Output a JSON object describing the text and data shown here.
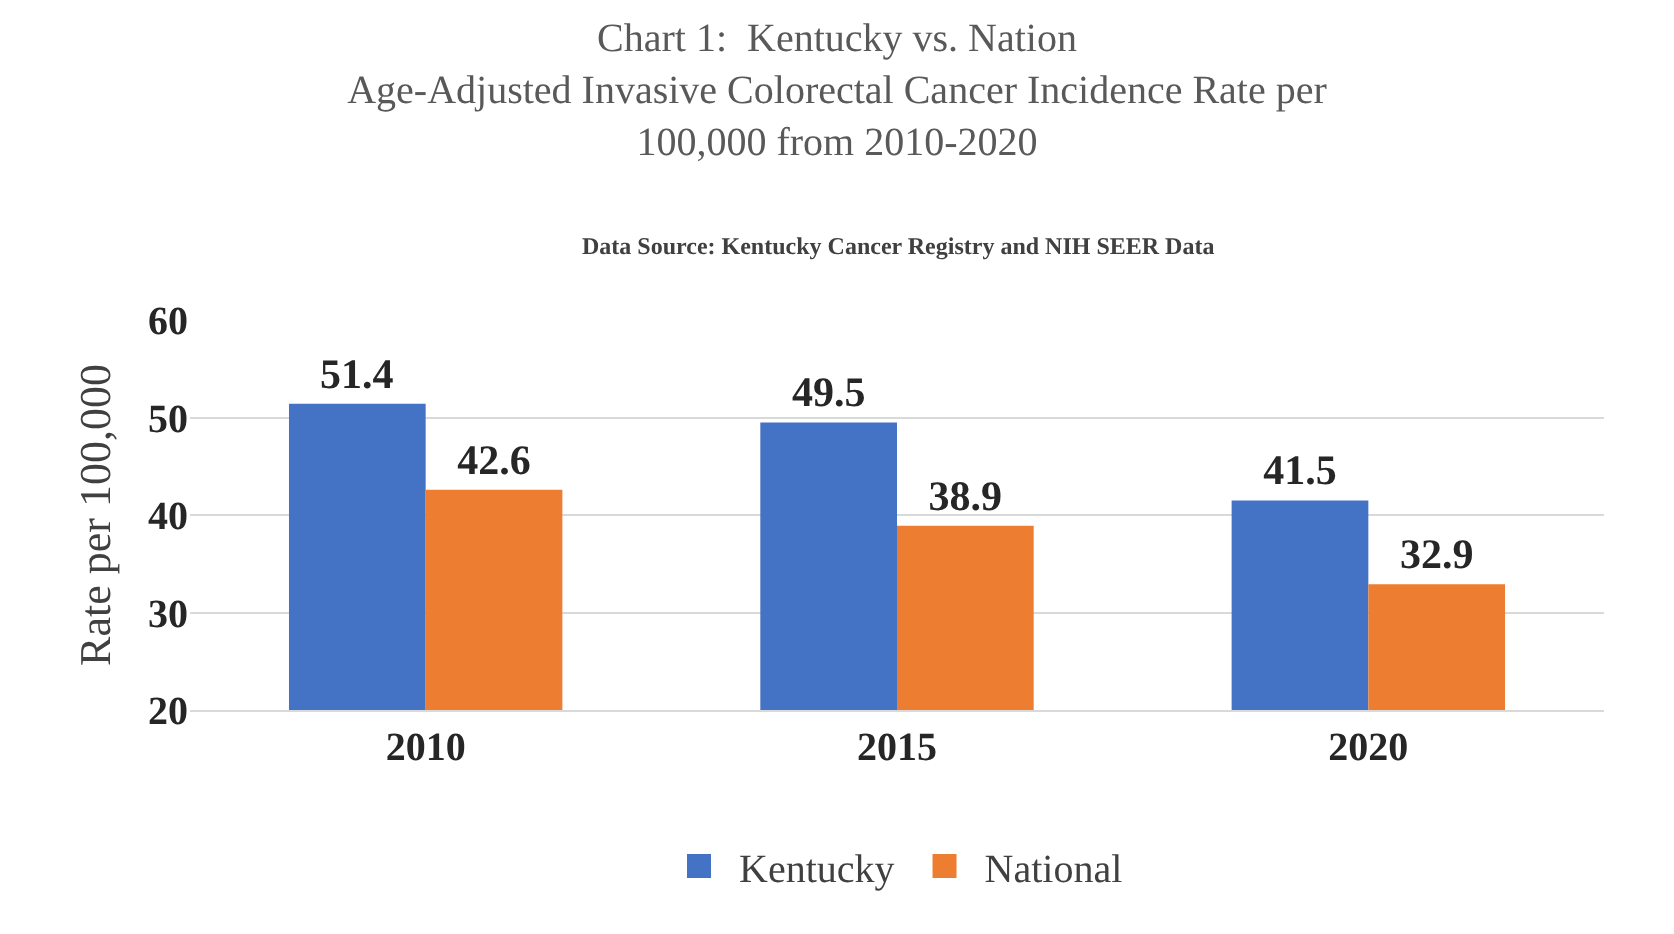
{
  "chart_data": {
    "type": "bar",
    "title": "Chart 1:  Kentucky vs. Nation\nAge-Adjusted Invasive Colorectal Cancer Incidence Rate per\n100,000 from 2010-2020",
    "subtitle": "Data Source: Kentucky Cancer Registry and NIH SEER Data",
    "ylabel": "Rate per 100,000",
    "categories": [
      "2010",
      "2015",
      "2020"
    ],
    "series": [
      {
        "name": "Kentucky",
        "color": "#4472c4",
        "values": [
          51.4,
          49.5,
          41.5
        ]
      },
      {
        "name": "National",
        "color": "#ed7d31",
        "values": [
          42.6,
          38.9,
          32.9
        ]
      }
    ],
    "ylim": [
      20,
      60
    ],
    "yticks": [
      20,
      30,
      40,
      50,
      60
    ],
    "grid": "y",
    "legend": "bottom",
    "data_labels": true
  }
}
